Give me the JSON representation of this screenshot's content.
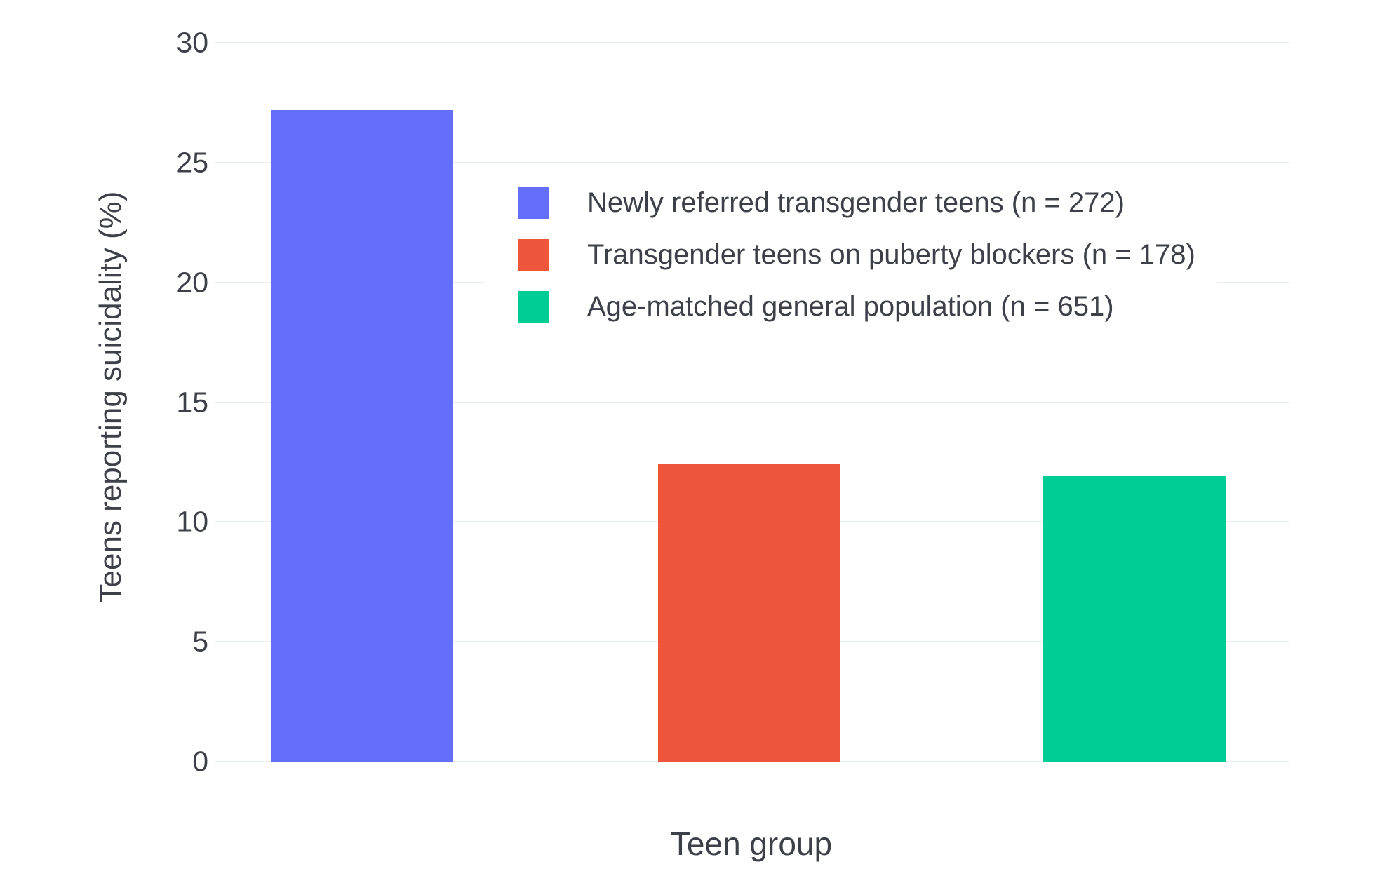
{
  "chart_data": {
    "type": "bar",
    "title": "",
    "xlabel": "Teen group",
    "ylabel": "Teens reporting suicidality (%)",
    "ylim": [
      0,
      30
    ],
    "yticks": [
      0,
      5,
      10,
      15,
      20,
      25,
      30
    ],
    "grid": true,
    "legend_position": "inside-top-center",
    "categories": [
      "Newly referred transgender teens",
      "Transgender teens on puberty blockers",
      "Age-matched general population"
    ],
    "series": [
      {
        "name": "Newly referred transgender teens (n = 272)",
        "value": 27.2,
        "color": "#636EFA"
      },
      {
        "name": "Transgender teens on puberty blockers (n = 178)",
        "value": 12.4,
        "color": "#EF553B"
      },
      {
        "name": "Age-matched general population (n = 651)",
        "value": 11.9,
        "color": "#00CC96"
      }
    ]
  },
  "colors": {
    "background": "#ffffff",
    "gridline": "#E8ECF5",
    "text": "#3d4049"
  }
}
